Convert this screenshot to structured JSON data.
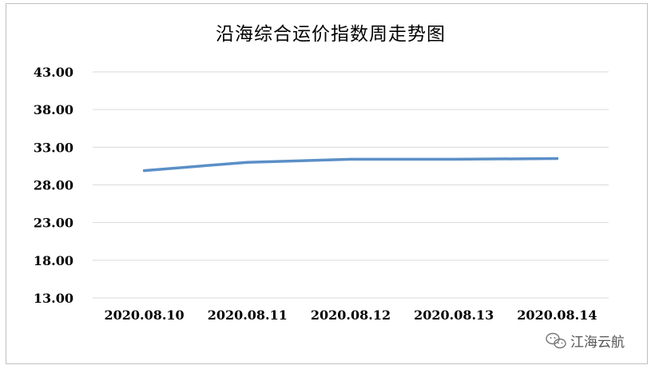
{
  "chart_data": {
    "type": "line",
    "title": "沿海综合运价指数周走势图",
    "categories": [
      "2020.08.10",
      "2020.08.11",
      "2020.08.12",
      "2020.08.13",
      "2020.08.14"
    ],
    "series": [
      {
        "values": [
          29.9,
          31.0,
          31.4,
          31.4,
          31.5
        ]
      }
    ],
    "yticks": [
      "13.00",
      "18.00",
      "23.00",
      "28.00",
      "33.00",
      "38.00",
      "43.00"
    ],
    "ylim": [
      13,
      43
    ],
    "grid": true,
    "legend": "none",
    "colors": {
      "series": "#5b8fc7",
      "grid": "#d9d9d9"
    }
  },
  "watermark": {
    "text": "江海云航",
    "icon": "wechat-icon"
  }
}
